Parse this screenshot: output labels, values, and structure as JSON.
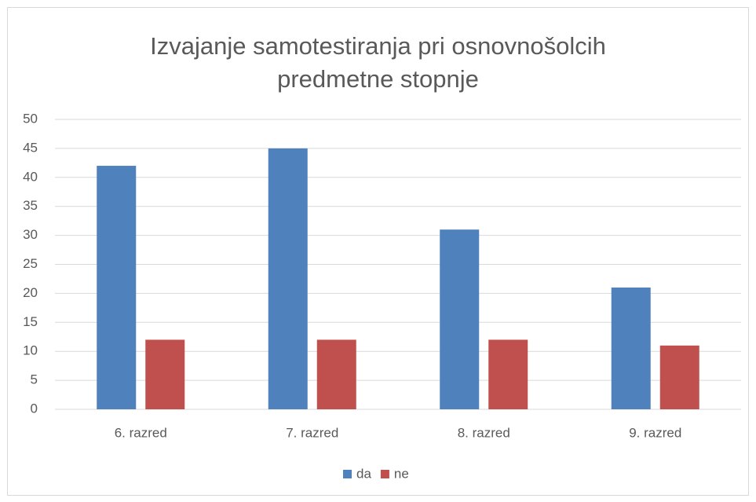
{
  "chart_data": {
    "type": "bar",
    "title": "Izvajanje samotestiranja pri osnovnošolcih predmetne stopnje",
    "categories": [
      "6. razred",
      "7. razred",
      "8. razred",
      "9. razred"
    ],
    "series": [
      {
        "name": "da",
        "color": "#4f81bd",
        "values": [
          42,
          45,
          31,
          21
        ]
      },
      {
        "name": "ne",
        "color": "#c0504d",
        "values": [
          12,
          12,
          12,
          11
        ]
      }
    ],
    "ylim": [
      0,
      50
    ],
    "yticks": [
      0,
      5,
      10,
      15,
      20,
      25,
      30,
      35,
      40,
      45,
      50
    ],
    "grid": true,
    "legend": "bottom"
  }
}
